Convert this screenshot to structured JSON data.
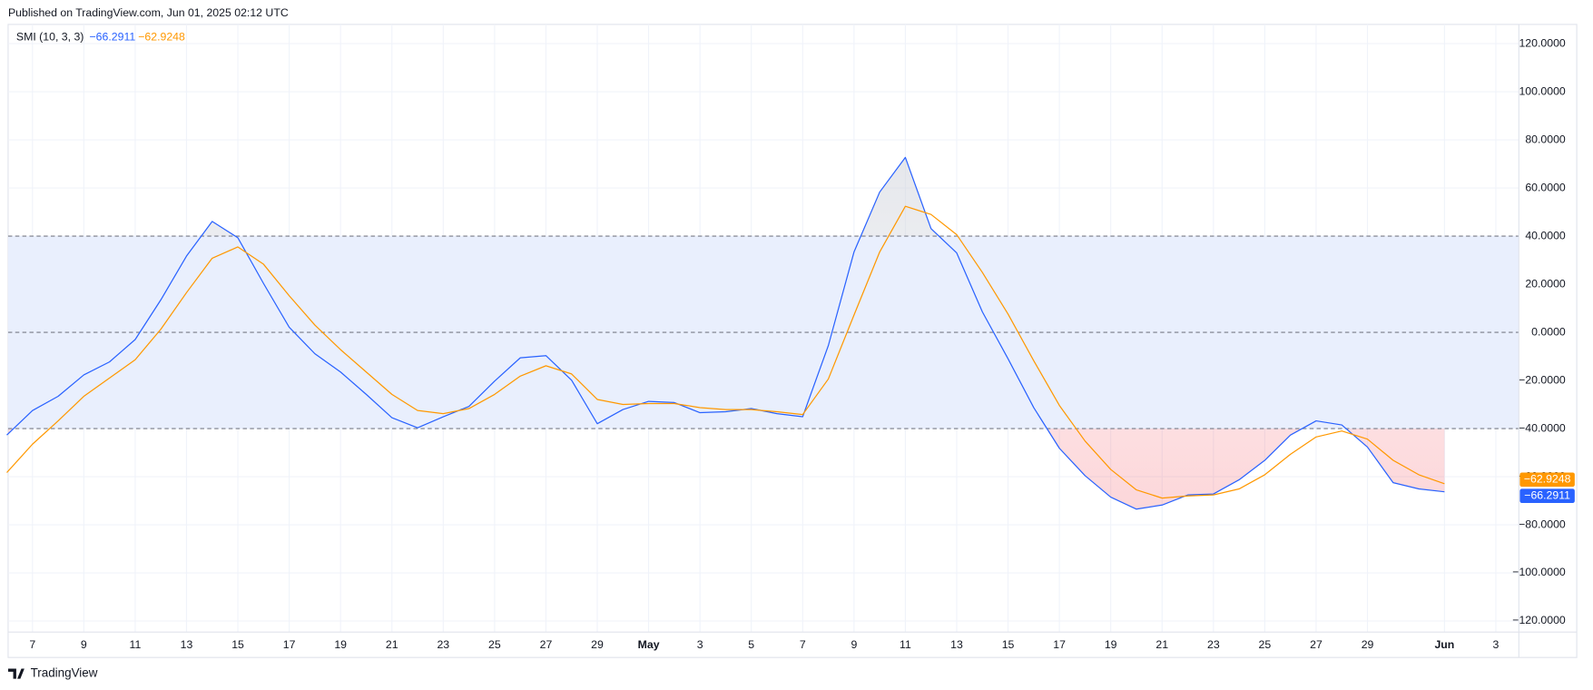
{
  "header": "Published on TradingView.com, Jun 01, 2025 02:12 UTC",
  "footer": "TradingView",
  "chart_data": {
    "type": "line",
    "title": "SMI (10, 3, 3)",
    "categories": [
      null,
      "7",
      null,
      "9",
      null,
      "11",
      null,
      "13",
      null,
      "15",
      null,
      "17",
      null,
      "19",
      null,
      "21",
      null,
      "23",
      null,
      "25",
      null,
      "27",
      null,
      "29",
      null,
      "May",
      null,
      "3",
      null,
      "5",
      null,
      "7",
      null,
      "9",
      null,
      "11",
      null,
      "13",
      null,
      "15",
      null,
      "17",
      null,
      "19",
      null,
      "21",
      null,
      "23",
      null,
      "25",
      null,
      "27",
      null,
      "29",
      null,
      null,
      "Jun",
      null,
      "3"
    ],
    "series": [
      {
        "color": "#2962ff",
        "last_value_label": "−66.2911",
        "values": [
          -42.7,
          -32.5,
          -26.6,
          -17.7,
          -12.3,
          -3.0,
          13.5,
          31.7,
          46.1,
          39.3,
          20.3,
          2.1,
          -8.9,
          -16.5,
          -25.8,
          -35.5,
          -39.7,
          -35.1,
          -30.8,
          -20.3,
          -10.6,
          -9.7,
          -19.9,
          -38.0,
          -32.1,
          -28.7,
          -29.2,
          -33.4,
          -33.0,
          -31.7,
          -33.8,
          -35.1,
          -5.5,
          33.4,
          58.3,
          72.7,
          43.1,
          33.0,
          8.5,
          -11.0,
          -31.3,
          -48.2,
          -59.6,
          -68.5,
          -73.5,
          -71.8,
          -67.6,
          -67.2,
          -61.3,
          -53.2,
          -42.7,
          -36.8,
          -38.5,
          -47.7,
          -62.5,
          -65.1,
          -66.2911,
          null,
          null
        ]
      },
      {
        "color": "#ff9800",
        "last_value_label": "−62.9248",
        "values": [
          -58.3,
          -46.5,
          -36.8,
          -26.6,
          -19.0,
          -11.4,
          1.3,
          16.5,
          30.8,
          35.5,
          28.3,
          15.2,
          3.0,
          -7.2,
          -16.5,
          -25.8,
          -32.5,
          -33.8,
          -31.7,
          -25.8,
          -18.2,
          -13.9,
          -17.3,
          -27.9,
          -30.0,
          -29.6,
          -29.6,
          -31.3,
          -32.1,
          -32.1,
          -33.0,
          -34.2,
          -19.4,
          7.2,
          33.4,
          52.4,
          49.0,
          40.6,
          24.9,
          7.6,
          -11.8,
          -30.4,
          -45.2,
          -57.0,
          -65.5,
          -68.9,
          -68.0,
          -67.6,
          -65.1,
          -59.2,
          -50.7,
          -43.5,
          -41.0,
          -44.4,
          -53.2,
          -59.2,
          -62.9248,
          null,
          null
        ]
      }
    ],
    "ylim": [
      -124.6,
      128
    ],
    "yticks": [
      {
        "value": 120,
        "label": "120.0000"
      },
      {
        "value": 100,
        "label": "100.0000"
      },
      {
        "value": 80,
        "label": "80.0000"
      },
      {
        "value": 60,
        "label": "60.0000"
      },
      {
        "value": 40,
        "label": "40.0000"
      },
      {
        "value": 20,
        "label": "20.0000"
      },
      {
        "value": 0,
        "label": "0.0000"
      },
      {
        "value": -20,
        "label": "−20.0000"
      },
      {
        "value": -40,
        "label": "−40.0000"
      },
      {
        "value": -60,
        "label": "−60.0000"
      },
      {
        "value": -80,
        "label": "−80.0000"
      },
      {
        "value": -100,
        "label": "−100.0000"
      },
      {
        "value": -120,
        "label": "−120.0000"
      }
    ],
    "levels": [
      40,
      0,
      -40
    ],
    "band_color": "#e9effd",
    "grid": true
  }
}
